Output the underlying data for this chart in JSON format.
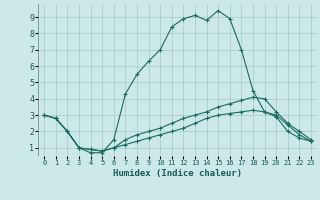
{
  "title": "",
  "xlabel": "Humidex (Indice chaleur)",
  "bg_color": "#cce8e8",
  "grid_color": "#aacece",
  "line_color": "#1a6a60",
  "xlim": [
    -0.5,
    23.5
  ],
  "ylim": [
    0.5,
    9.8
  ],
  "xticks": [
    0,
    1,
    2,
    3,
    4,
    5,
    6,
    7,
    8,
    9,
    10,
    11,
    12,
    13,
    14,
    15,
    16,
    17,
    18,
    19,
    20,
    21,
    22,
    23
  ],
  "yticks": [
    1,
    2,
    3,
    4,
    5,
    6,
    7,
    8,
    9
  ],
  "series": [
    {
      "x": [
        0,
        1,
        2,
        3,
        4,
        5,
        6,
        7,
        8,
        9,
        10,
        11,
        12,
        13,
        14,
        15,
        16,
        17,
        18,
        19,
        20,
        21,
        22,
        23
      ],
      "y": [
        3.0,
        2.8,
        2.0,
        1.0,
        0.7,
        0.7,
        1.5,
        4.3,
        5.5,
        6.3,
        7.0,
        8.4,
        8.9,
        9.1,
        8.8,
        9.4,
        8.9,
        7.0,
        4.5,
        3.2,
        2.9,
        2.0,
        1.6,
        1.4
      ]
    },
    {
      "x": [
        0,
        1,
        2,
        3,
        4,
        5,
        6,
        7,
        8,
        9,
        10,
        11,
        12,
        13,
        14,
        15,
        16,
        17,
        18,
        19,
        20,
        21,
        22,
        23
      ],
      "y": [
        3.0,
        2.8,
        2.0,
        1.0,
        0.9,
        0.8,
        1.0,
        1.5,
        1.8,
        2.0,
        2.2,
        2.5,
        2.8,
        3.0,
        3.2,
        3.5,
        3.7,
        3.9,
        4.1,
        4.0,
        3.2,
        2.5,
        2.0,
        1.5
      ]
    },
    {
      "x": [
        0,
        1,
        2,
        3,
        4,
        5,
        6,
        7,
        8,
        9,
        10,
        11,
        12,
        13,
        14,
        15,
        16,
        17,
        18,
        19,
        20,
        21,
        22,
        23
      ],
      "y": [
        3.0,
        2.8,
        2.0,
        1.0,
        0.9,
        0.8,
        1.0,
        1.2,
        1.4,
        1.6,
        1.8,
        2.0,
        2.2,
        2.5,
        2.8,
        3.0,
        3.1,
        3.2,
        3.3,
        3.2,
        3.0,
        2.4,
        1.8,
        1.4
      ]
    }
  ]
}
